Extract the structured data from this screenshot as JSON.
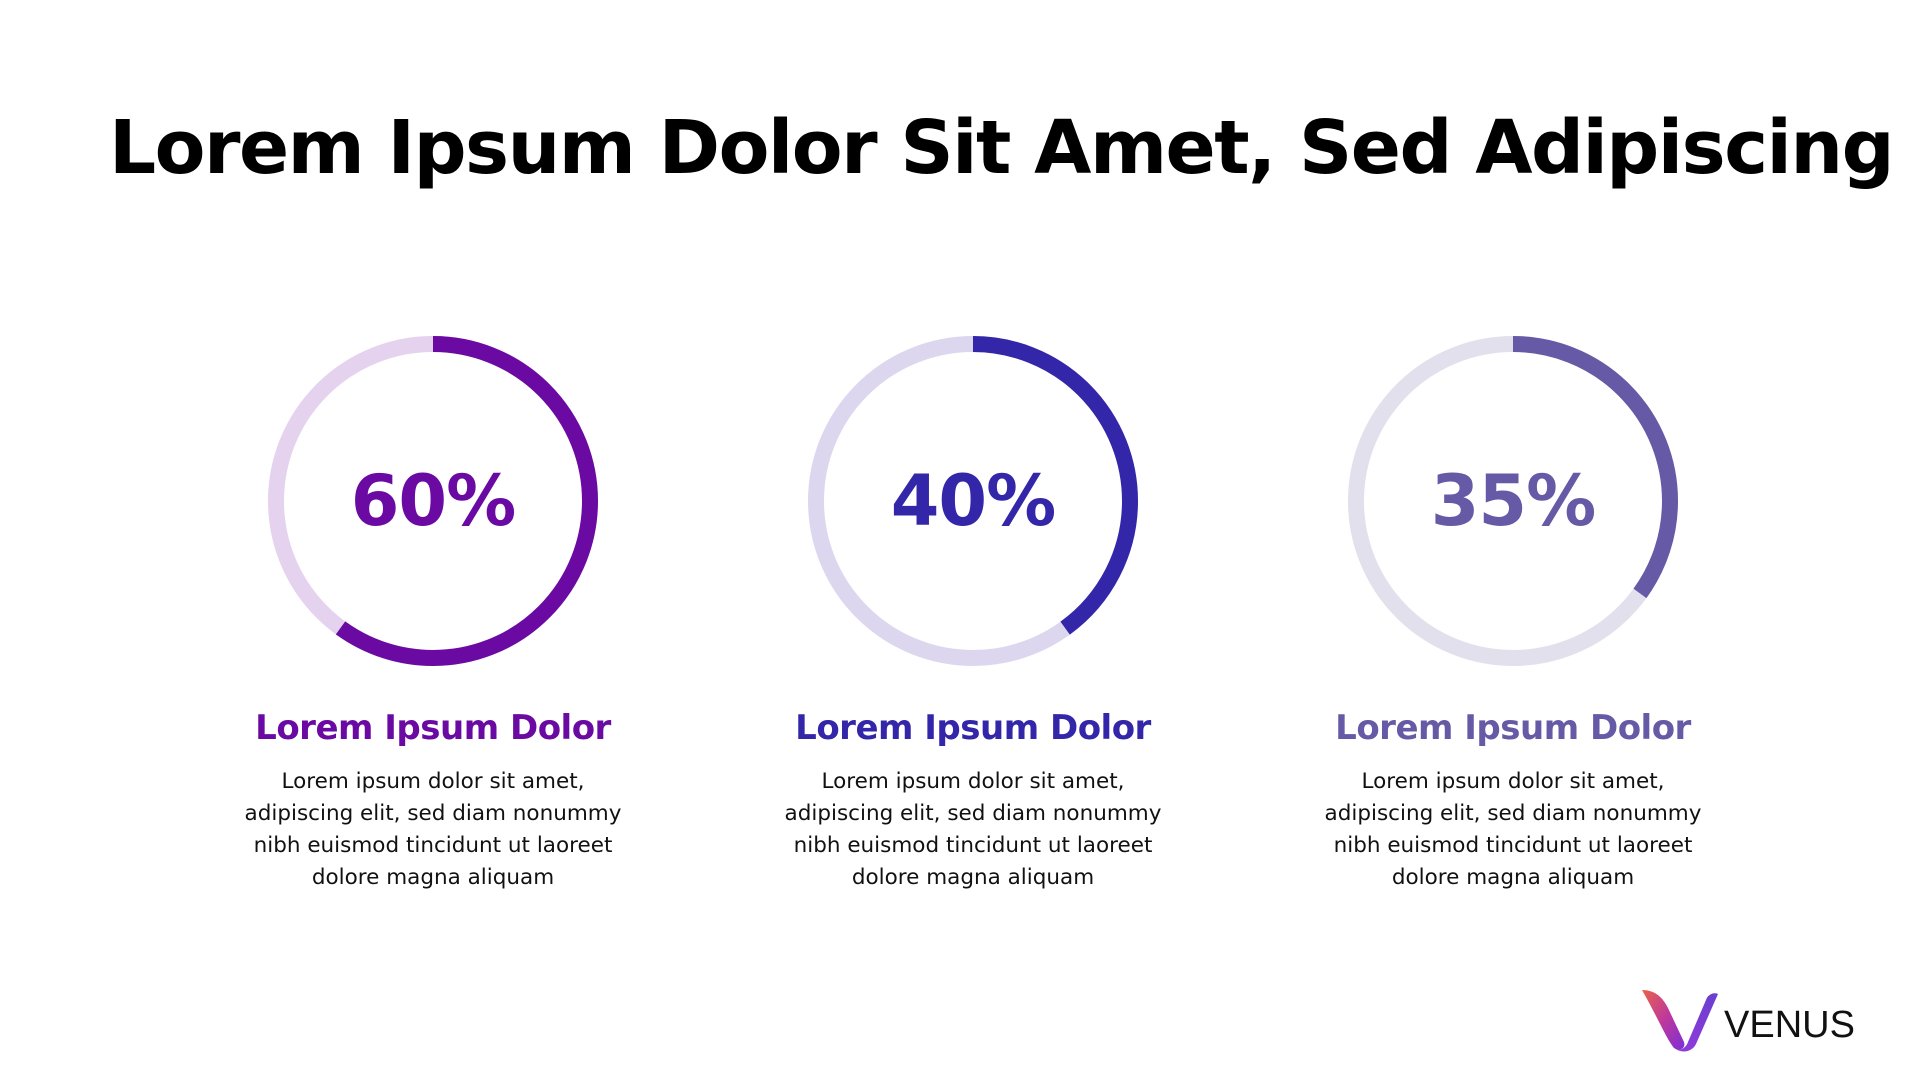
{
  "slide": {
    "title": "Lorem Ipsum Dolor Sit Amet, Sed Adipiscing"
  },
  "stats": [
    {
      "value_label": "60%",
      "progress": 0.6,
      "heading": "Lorem Ipsum Dolor",
      "body": "Lorem ipsum dolor sit amet, adipiscing elit, sed diam nonummy nibh euismod tincidunt ut laoreet dolore magna aliquam",
      "color": "#6a0aa3",
      "track_color": "#e5d2ee"
    },
    {
      "value_label": "40%",
      "progress": 0.4,
      "heading": "Lorem Ipsum Dolor",
      "body": "Lorem ipsum dolor sit amet, adipiscing elit, sed diam nonummy nibh euismod tincidunt ut laoreet dolore magna aliquam",
      "color": "#3326a8",
      "track_color": "#dcd7ef"
    },
    {
      "value_label": "35%",
      "progress": 0.35,
      "heading": "Lorem Ipsum Dolor",
      "body": "Lorem ipsum dolor sit amet, adipiscing elit, sed diam nonummy nibh euismod tincidunt ut laoreet dolore magna aliquam",
      "color": "#6659a6",
      "track_color": "#e2e0ec"
    }
  ],
  "logo": {
    "text": "VENUS",
    "icon": "venus-v-logo-icon"
  }
}
